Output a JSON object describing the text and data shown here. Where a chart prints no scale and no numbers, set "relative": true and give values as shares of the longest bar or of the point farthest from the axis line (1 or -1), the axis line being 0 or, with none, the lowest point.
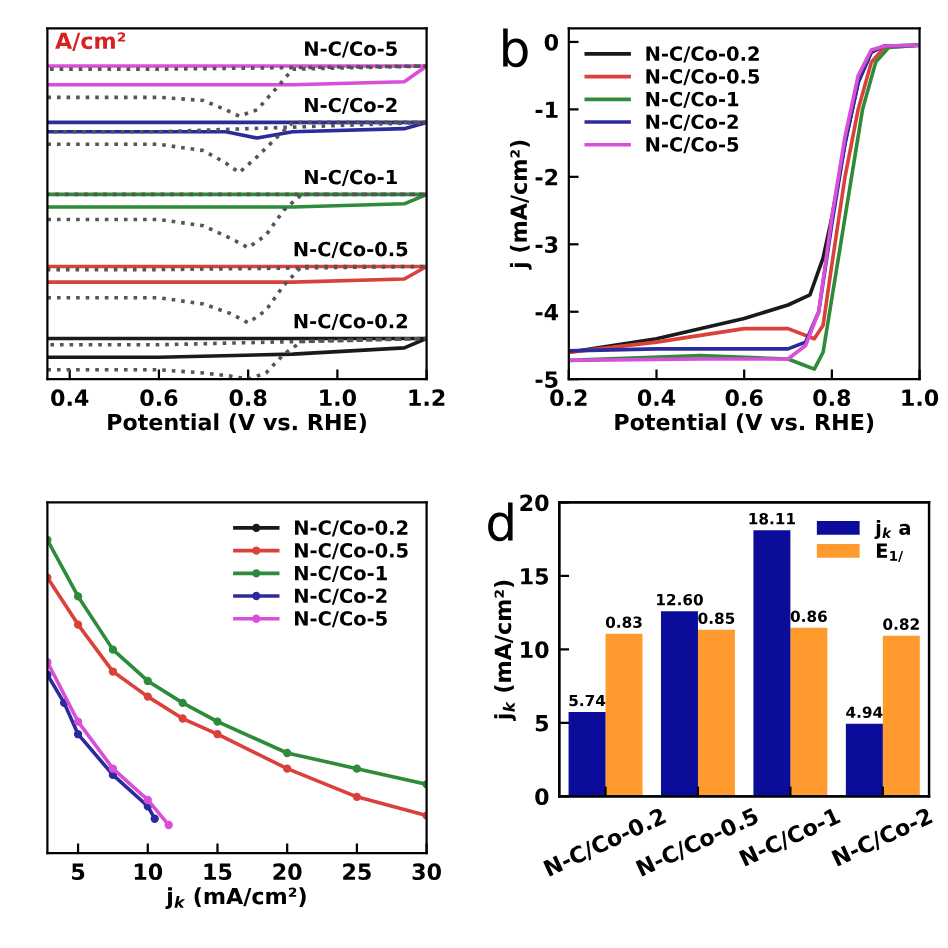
{
  "chart_data": [
    {
      "type": "line",
      "relative": true,
      "xlabel": "Potential (V vs. RHE)",
      "xlim": [
        0.35,
        1.2
      ],
      "xticks": [
        {
          "value": 0.4,
          "label": "0.4"
        },
        {
          "value": 0.6,
          "label": "0.6"
        },
        {
          "value": 0.8,
          "label": "0.8"
        },
        {
          "value": 1.0,
          "label": "1.0"
        },
        {
          "value": 1.2,
          "label": "1.2"
        }
      ],
      "tick_labels": "x",
      "legend": false,
      "grid": false,
      "annotations": [
        "A/cm²"
      ],
      "series": [
        {
          "name": "N-C/Co-5",
          "color": "#d94fd9",
          "x": [
            0.35,
            0.6,
            0.9,
            1.15,
            1.2,
            1.15,
            0.9,
            0.6,
            0.35
          ],
          "values": [
            0.94,
            0.94,
            0.94,
            0.95,
            1.0,
            1.0,
            1.0,
            1.0,
            1.0
          ]
        },
        {
          "color": "#555555",
          "line_style": "dotted",
          "x": [
            0.35,
            0.6,
            0.7,
            0.75,
            0.78,
            0.82,
            0.87,
            0.9,
            1.2,
            0.6,
            0.35
          ],
          "values": [
            0.9,
            0.9,
            0.89,
            0.86,
            0.84,
            0.86,
            0.94,
            0.99,
            1.0,
            0.99,
            0.99
          ]
        },
        {
          "name": "N-C/Co-2",
          "color": "#2b2b9e",
          "x": [
            0.35,
            0.75,
            0.82,
            0.9,
            1.15,
            1.2,
            1.15,
            0.6,
            0.35
          ],
          "values": [
            0.79,
            0.79,
            0.77,
            0.79,
            0.8,
            0.82,
            0.82,
            0.82,
            0.82
          ]
        },
        {
          "color": "#555555",
          "line_style": "dotted",
          "x": [
            0.35,
            0.6,
            0.7,
            0.75,
            0.78,
            0.82,
            0.87,
            0.9,
            1.2,
            0.6,
            0.35
          ],
          "values": [
            0.75,
            0.75,
            0.73,
            0.69,
            0.66,
            0.71,
            0.78,
            0.82,
            0.82,
            0.79,
            0.79
          ]
        },
        {
          "name": "N-C/Co-1",
          "color": "#2e8b3a",
          "x": [
            0.35,
            0.6,
            0.9,
            1.15,
            1.2,
            1.15,
            0.9,
            0.6,
            0.35
          ],
          "values": [
            0.55,
            0.55,
            0.55,
            0.56,
            0.59,
            0.59,
            0.59,
            0.59,
            0.59
          ]
        },
        {
          "color": "#555555",
          "line_style": "dotted",
          "x": [
            0.35,
            0.6,
            0.7,
            0.76,
            0.8,
            0.84,
            0.88,
            0.92,
            1.2,
            0.6,
            0.35
          ],
          "values": [
            0.51,
            0.51,
            0.49,
            0.45,
            0.42,
            0.46,
            0.54,
            0.59,
            0.59,
            0.59,
            0.59
          ]
        },
        {
          "name": "N-C/Co-0.5",
          "color": "#d9413a",
          "x": [
            0.35,
            0.6,
            0.9,
            1.15,
            1.2,
            1.15,
            0.9,
            0.6,
            0.35
          ],
          "values": [
            0.31,
            0.31,
            0.31,
            0.32,
            0.36,
            0.36,
            0.36,
            0.36,
            0.36
          ]
        },
        {
          "color": "#555555",
          "line_style": "dotted",
          "x": [
            0.35,
            0.6,
            0.7,
            0.76,
            0.8,
            0.84,
            0.88,
            0.92,
            1.2,
            0.6,
            0.35
          ],
          "values": [
            0.26,
            0.26,
            0.24,
            0.21,
            0.18,
            0.22,
            0.3,
            0.36,
            0.36,
            0.35,
            0.35
          ]
        },
        {
          "name": "N-C/Co-0.2",
          "color": "#1a1a1a",
          "x": [
            0.35,
            0.6,
            0.9,
            1.15,
            1.2,
            1.15,
            0.9,
            0.6,
            0.35
          ],
          "values": [
            0.07,
            0.07,
            0.08,
            0.1,
            0.13,
            0.13,
            0.13,
            0.13,
            0.13
          ]
        },
        {
          "color": "#555555",
          "line_style": "dotted",
          "x": [
            0.35,
            0.6,
            0.7,
            0.76,
            0.8,
            0.84,
            0.88,
            0.92,
            1.2,
            0.6,
            0.35
          ],
          "values": [
            0.03,
            0.03,
            0.02,
            0.01,
            0.0,
            0.02,
            0.08,
            0.12,
            0.13,
            0.11,
            0.11
          ]
        }
      ]
    },
    {
      "type": "line",
      "title": "b",
      "xlabel": "Potential (V vs. RHE)",
      "ylabel": "j (mA/cm²)",
      "xlim": [
        0.2,
        1.0
      ],
      "xticks": [
        {
          "value": 0.2,
          "label": "0.2"
        },
        {
          "value": 0.4,
          "label": "0.4"
        },
        {
          "value": 0.6,
          "label": "0.6"
        },
        {
          "value": 0.8,
          "label": "0.8"
        },
        {
          "value": 1.0,
          "label": "1.0"
        }
      ],
      "ylim": [
        -5,
        0.2
      ],
      "yticks": [
        -5,
        -4,
        -3,
        -2,
        -1,
        0
      ],
      "legend": "top left",
      "grid": false,
      "series": [
        {
          "name": "N-C/Co-0.2",
          "color": "#1a1a1a",
          "x": [
            0.2,
            0.4,
            0.6,
            0.7,
            0.75,
            0.78,
            0.8,
            0.83,
            0.86,
            0.89,
            0.92,
            1.0
          ],
          "values": [
            -4.6,
            -4.4,
            -4.1,
            -3.9,
            -3.75,
            -3.2,
            -2.6,
            -1.5,
            -0.6,
            -0.15,
            -0.06,
            -0.05
          ]
        },
        {
          "name": "N-C/Co-0.5",
          "color": "#d9413a",
          "x": [
            0.2,
            0.4,
            0.6,
            0.7,
            0.76,
            0.78,
            0.8,
            0.83,
            0.86,
            0.89,
            0.92,
            1.0
          ],
          "values": [
            -4.6,
            -4.45,
            -4.25,
            -4.25,
            -4.4,
            -4.2,
            -3.3,
            -2.0,
            -1.0,
            -0.3,
            -0.08,
            -0.05
          ]
        },
        {
          "name": "N-C/Co-1",
          "color": "#2e8b3a",
          "x": [
            0.2,
            0.5,
            0.7,
            0.74,
            0.76,
            0.78,
            0.8,
            0.84,
            0.87,
            0.9,
            0.93,
            1.0
          ],
          "values": [
            -4.72,
            -4.65,
            -4.7,
            -4.8,
            -4.85,
            -4.6,
            -3.8,
            -2.2,
            -1.0,
            -0.3,
            -0.08,
            -0.05
          ]
        },
        {
          "name": "N-C/Co-2",
          "color": "#2b2b9e",
          "x": [
            0.2,
            0.4,
            0.7,
            0.74,
            0.77,
            0.8,
            0.83,
            0.86,
            0.89,
            0.92,
            1.0
          ],
          "values": [
            -4.58,
            -4.55,
            -4.55,
            -4.45,
            -4.0,
            -2.7,
            -1.5,
            -0.6,
            -0.15,
            -0.06,
            -0.05
          ]
        },
        {
          "name": "N-C/Co-5",
          "color": "#d94fd9",
          "x": [
            0.2,
            0.5,
            0.7,
            0.74,
            0.77,
            0.8,
            0.83,
            0.86,
            0.89,
            0.92,
            1.0
          ],
          "values": [
            -4.72,
            -4.7,
            -4.7,
            -4.5,
            -4.0,
            -2.6,
            -1.4,
            -0.5,
            -0.12,
            -0.06,
            -0.05
          ]
        }
      ]
    },
    {
      "type": "line",
      "relative": true,
      "xlabel": "j$_{k}$ (mA/cm²)",
      "xlim": [
        2.8,
        30
      ],
      "xticks": [
        5,
        10,
        15,
        20,
        25,
        30
      ],
      "tick_labels": "x",
      "legend": "top right",
      "grid": false,
      "marker": "circle",
      "series": [
        {
          "name": "N-C/Co-0.2",
          "color": "#1a1a1a"
        },
        {
          "name": "N-C/Co-0.5",
          "color": "#d9413a",
          "x": [
            2.8,
            5,
            7.5,
            10,
            12.5,
            15,
            20,
            25,
            30
          ],
          "values": [
            0.88,
            0.73,
            0.58,
            0.5,
            0.43,
            0.38,
            0.27,
            0.18,
            0.12
          ]
        },
        {
          "name": "N-C/Co-1",
          "color": "#2e8b3a",
          "x": [
            2.8,
            5,
            7.5,
            10,
            12.5,
            15,
            20,
            25,
            30
          ],
          "values": [
            1.0,
            0.82,
            0.65,
            0.55,
            0.48,
            0.42,
            0.32,
            0.27,
            0.22
          ]
        },
        {
          "name": "N-C/Co-2",
          "color": "#2b2b9e",
          "x": [
            2.8,
            4,
            5,
            7.5,
            10,
            10.5
          ],
          "values": [
            0.57,
            0.48,
            0.38,
            0.25,
            0.15,
            0.11
          ]
        },
        {
          "name": "N-C/Co-5",
          "color": "#d94fd9",
          "x": [
            2.8,
            5,
            7.5,
            10,
            11.5
          ],
          "values": [
            0.61,
            0.42,
            0.27,
            0.17,
            0.09
          ]
        }
      ]
    },
    {
      "type": "bar",
      "title": "d",
      "ylabel": "j$_{k}$ (mA/cm²)",
      "categories": [
        "N-C/Co-0.2",
        "N-C/Co-0.5",
        "N-C/Co-1",
        "N-C/Co-2"
      ],
      "ylim": [
        0,
        20
      ],
      "yticks": [
        0,
        5,
        10,
        15,
        20
      ],
      "y2lim": [
        0,
        1.5
      ],
      "legend": "top right",
      "grid": false,
      "series": [
        {
          "name": "j$_{k}$ a",
          "color": "#0c0c9a",
          "values": [
            5.74,
            12.6,
            18.11,
            4.94
          ],
          "value_labels": [
            "5.74",
            "12.60",
            "18.11",
            "4.94"
          ]
        },
        {
          "name": "E$_{1/}$",
          "color": "#ff9a2e",
          "axis": "y2",
          "values": [
            0.83,
            0.85,
            0.86,
            0.82
          ],
          "value_labels": [
            "0.83",
            "0.85",
            "0.86",
            "0.82"
          ]
        }
      ]
    }
  ]
}
